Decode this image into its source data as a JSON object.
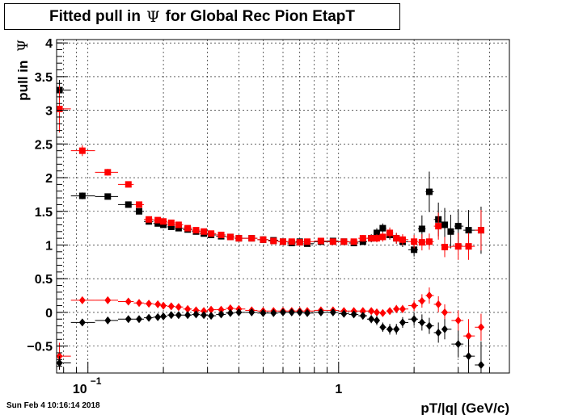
{
  "chart_data": {
    "type": "scatter",
    "title": {
      "prefix": "Fitted pull in",
      "symbol": "Ψ",
      "suffix": "for Global Rec Pion EtapT"
    },
    "xlabel": "pT/|q| (GeV/c)",
    "ylabel": {
      "prefix": "pull in",
      "symbol": "Ψ"
    },
    "xscale": "log",
    "xlim": [
      0.075,
      4.8
    ],
    "ylim": [
      -0.9,
      4.05
    ],
    "grid": true,
    "legend": "none",
    "x_tick_labels": [
      {
        "base": "10",
        "exp": "−1",
        "value": 0.1
      },
      {
        "text": "1",
        "value": 1
      }
    ],
    "y_ticks": [
      -0.5,
      0,
      0.5,
      1,
      1.5,
      2,
      2.5,
      3,
      3.5,
      4
    ],
    "y_tick_labels": [
      "−0.5",
      "0",
      "0.5",
      "1",
      "1.5",
      "2",
      "2.5",
      "3",
      "3.5",
      "4"
    ],
    "series": [
      {
        "marker": "square",
        "color": "#000000",
        "x": [
          0.077,
          0.095,
          0.12,
          0.145,
          0.16,
          0.175,
          0.19,
          0.2,
          0.215,
          0.23,
          0.25,
          0.27,
          0.29,
          0.31,
          0.34,
          0.37,
          0.4,
          0.45,
          0.5,
          0.55,
          0.6,
          0.65,
          0.7,
          0.75,
          0.85,
          0.95,
          1.05,
          1.15,
          1.25,
          1.35,
          1.42,
          1.5,
          1.6,
          1.7,
          1.8,
          2.0,
          2.15,
          2.3,
          2.5,
          2.65,
          2.8,
          3.0,
          3.3,
          3.7
        ],
        "y": [
          3.3,
          1.73,
          1.72,
          1.6,
          1.5,
          1.35,
          1.32,
          1.3,
          1.27,
          1.25,
          1.23,
          1.2,
          1.17,
          1.15,
          1.13,
          1.12,
          1.1,
          1.1,
          1.08,
          1.07,
          1.05,
          1.03,
          1.05,
          1.02,
          1.05,
          1.06,
          1.05,
          1.03,
          1.05,
          1.1,
          1.18,
          1.25,
          1.15,
          1.1,
          1.05,
          0.93,
          1.24,
          1.79,
          1.38,
          1.3,
          1.2,
          1.28,
          1.22,
          1.22
        ],
        "yerr": [
          0.15,
          0.05,
          0.04,
          0.04,
          0.04,
          0.04,
          0.03,
          0.03,
          0.03,
          0.03,
          0.03,
          0.03,
          0.03,
          0.03,
          0.03,
          0.03,
          0.03,
          0.03,
          0.03,
          0.03,
          0.03,
          0.03,
          0.03,
          0.03,
          0.03,
          0.03,
          0.03,
          0.04,
          0.05,
          0.06,
          0.07,
          0.07,
          0.07,
          0.08,
          0.08,
          0.1,
          0.2,
          0.3,
          0.25,
          0.25,
          0.25,
          0.25,
          0.3,
          0.35
        ]
      },
      {
        "marker": "square",
        "color": "#ff0000",
        "x": [
          0.077,
          0.095,
          0.12,
          0.145,
          0.16,
          0.175,
          0.19,
          0.2,
          0.215,
          0.23,
          0.25,
          0.27,
          0.29,
          0.31,
          0.34,
          0.37,
          0.4,
          0.45,
          0.5,
          0.55,
          0.6,
          0.65,
          0.7,
          0.75,
          0.85,
          0.95,
          1.05,
          1.15,
          1.25,
          1.35,
          1.42,
          1.5,
          1.6,
          1.7,
          1.8,
          2.0,
          2.15,
          2.3,
          2.5,
          2.65,
          3.0,
          3.3,
          3.7
        ],
        "y": [
          3.02,
          2.4,
          2.08,
          1.9,
          1.6,
          1.38,
          1.37,
          1.35,
          1.33,
          1.3,
          1.25,
          1.22,
          1.2,
          1.17,
          1.15,
          1.12,
          1.1,
          1.1,
          1.08,
          1.06,
          1.05,
          1.05,
          1.04,
          1.05,
          1.06,
          1.05,
          1.05,
          1.05,
          1.1,
          1.1,
          1.1,
          1.12,
          1.18,
          1.1,
          1.08,
          1.05,
          1.04,
          1.05,
          1.28,
          0.97,
          0.98,
          0.98,
          1.22
        ],
        "yerr": [
          0.35,
          0.08,
          0.05,
          0.04,
          0.04,
          0.04,
          0.03,
          0.03,
          0.03,
          0.03,
          0.03,
          0.03,
          0.03,
          0.03,
          0.03,
          0.03,
          0.03,
          0.03,
          0.03,
          0.03,
          0.03,
          0.03,
          0.03,
          0.03,
          0.03,
          0.03,
          0.04,
          0.04,
          0.05,
          0.05,
          0.06,
          0.07,
          0.08,
          0.08,
          0.08,
          0.1,
          0.12,
          0.12,
          0.2,
          0.15,
          0.2,
          0.2,
          0.3
        ]
      },
      {
        "marker": "diamond",
        "color": "#ff0000",
        "x": [
          0.077,
          0.095,
          0.12,
          0.145,
          0.16,
          0.175,
          0.19,
          0.2,
          0.215,
          0.23,
          0.25,
          0.27,
          0.29,
          0.31,
          0.34,
          0.37,
          0.4,
          0.45,
          0.5,
          0.55,
          0.6,
          0.65,
          0.7,
          0.75,
          0.85,
          0.95,
          1.05,
          1.15,
          1.25,
          1.35,
          1.42,
          1.5,
          1.6,
          1.7,
          1.8,
          2.0,
          2.15,
          2.3,
          2.5,
          2.65,
          3.0,
          3.3,
          3.7
        ],
        "y": [
          -0.65,
          0.18,
          0.18,
          0.16,
          0.14,
          0.13,
          0.12,
          0.1,
          0.09,
          0.08,
          0.05,
          0.03,
          0.02,
          0.04,
          0.04,
          0.06,
          0.05,
          0.03,
          0.02,
          0.02,
          0.02,
          0.02,
          0.02,
          0.02,
          0.03,
          0.03,
          0.02,
          0.02,
          0.02,
          0.02,
          0.0,
          -0.01,
          0.02,
          0.05,
          0.05,
          0.1,
          0.17,
          0.25,
          0.12,
          0.0,
          -0.12,
          -0.35,
          -0.22
        ],
        "yerr": [
          0.2,
          0.03,
          0.03,
          0.03,
          0.03,
          0.02,
          0.02,
          0.02,
          0.02,
          0.02,
          0.02,
          0.02,
          0.02,
          0.02,
          0.02,
          0.02,
          0.02,
          0.02,
          0.02,
          0.02,
          0.02,
          0.02,
          0.02,
          0.02,
          0.02,
          0.02,
          0.03,
          0.03,
          0.03,
          0.03,
          0.04,
          0.05,
          0.05,
          0.06,
          0.06,
          0.08,
          0.1,
          0.12,
          0.12,
          0.12,
          0.15,
          0.25,
          0.2
        ]
      },
      {
        "marker": "diamond",
        "color": "#000000",
        "x": [
          0.077,
          0.095,
          0.12,
          0.145,
          0.16,
          0.175,
          0.19,
          0.2,
          0.215,
          0.23,
          0.25,
          0.27,
          0.29,
          0.31,
          0.34,
          0.37,
          0.4,
          0.45,
          0.5,
          0.55,
          0.6,
          0.65,
          0.7,
          0.75,
          0.85,
          0.95,
          1.05,
          1.15,
          1.25,
          1.35,
          1.42,
          1.5,
          1.6,
          1.7,
          1.8,
          2.0,
          2.15,
          2.3,
          2.5,
          2.65,
          3.0,
          3.3,
          3.7
        ],
        "y": [
          -0.75,
          -0.15,
          -0.12,
          -0.1,
          -0.1,
          -0.08,
          -0.07,
          -0.06,
          -0.04,
          -0.04,
          -0.04,
          -0.03,
          -0.04,
          -0.05,
          -0.03,
          -0.01,
          0.0,
          0.0,
          -0.01,
          -0.01,
          0.0,
          0.0,
          0.0,
          -0.01,
          0.0,
          0.0,
          -0.02,
          -0.03,
          -0.05,
          -0.1,
          -0.12,
          -0.22,
          -0.25,
          -0.25,
          -0.15,
          -0.1,
          -0.15,
          -0.2,
          -0.3,
          -0.25,
          -0.47,
          -0.65,
          -0.78
        ],
        "yerr": [
          0.1,
          0.03,
          0.03,
          0.02,
          0.02,
          0.02,
          0.02,
          0.02,
          0.02,
          0.02,
          0.02,
          0.02,
          0.02,
          0.02,
          0.02,
          0.02,
          0.02,
          0.02,
          0.02,
          0.02,
          0.02,
          0.02,
          0.02,
          0.02,
          0.02,
          0.02,
          0.03,
          0.04,
          0.05,
          0.06,
          0.07,
          0.07,
          0.08,
          0.08,
          0.08,
          0.1,
          0.12,
          0.12,
          0.15,
          0.15,
          0.2,
          0.25,
          0.35
        ]
      }
    ]
  },
  "timestamp": "Sun Feb  4 10:16:14 2018"
}
